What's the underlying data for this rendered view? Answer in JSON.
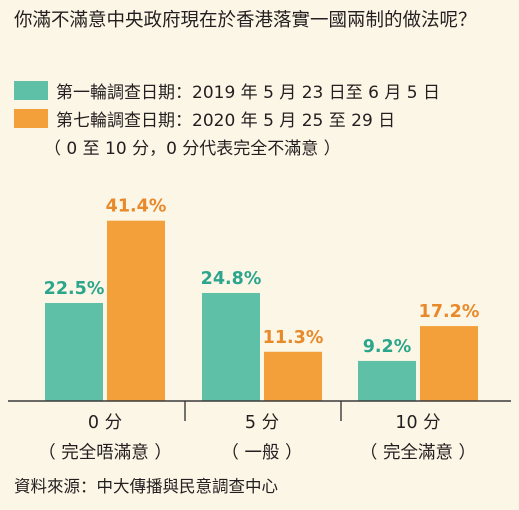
{
  "title": "你滿不滿意中央政府現在於香港落實一國兩制的做法呢？",
  "legend": [
    {
      "label": "第一輪調查日期：2019 年 5 月 23 日至 6 月 5 日",
      "color": "#5fc0a8"
    },
    {
      "label": "第七輪調查日期：2020 年 5 月 25 至 29 日",
      "color": "#f4a03a"
    }
  ],
  "note": "（ 0 至 10 分，0 分代表完全不滿意 ）",
  "source": "資料來源：中大傳播與民意調查中心",
  "chart_data": {
    "type": "bar",
    "categories": [
      "0 分\n（ 完全唔滿意 ）",
      "5 分\n（ 一般 ）",
      "10 分\n（ 完全滿意 ）"
    ],
    "series": [
      {
        "name": "第一輪調查日期：2019 年 5 月 23 日至 6 月 5 日",
        "values": [
          22.5,
          24.8,
          9.2
        ],
        "labels": [
          "22.5%",
          "24.8%",
          "9.2%"
        ],
        "color": "#5fc0a8",
        "label_color": "#2ba68c"
      },
      {
        "name": "第七輪調查日期：2020 年 5 月 25 至 29 日",
        "values": [
          41.4,
          11.3,
          17.2
        ],
        "labels": [
          "41.4%",
          "11.3%",
          "17.2%"
        ],
        "color": "#f4a03a",
        "label_color": "#e8892a"
      }
    ],
    "ylim": [
      0,
      45
    ],
    "grid": false,
    "xlabel": "",
    "ylabel": ""
  }
}
